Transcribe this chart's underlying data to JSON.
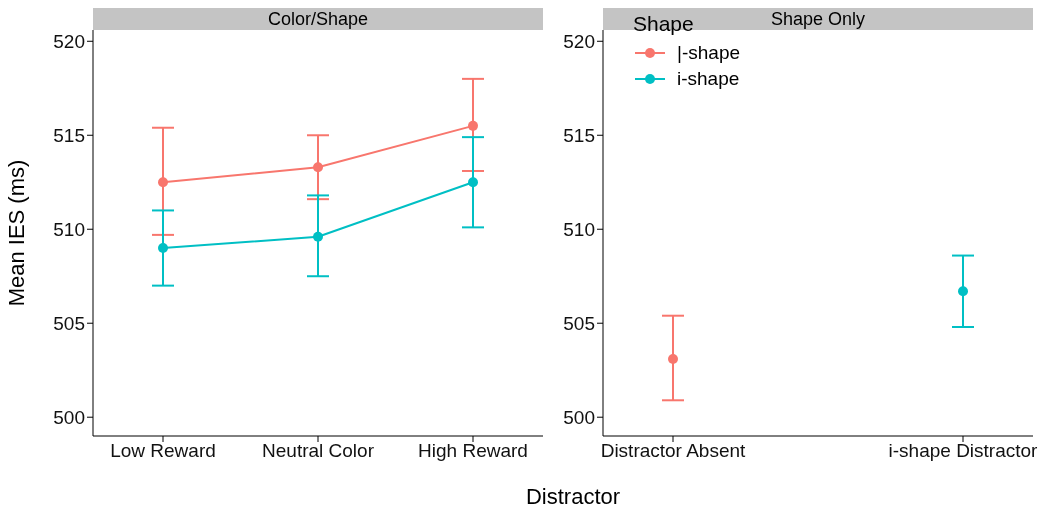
{
  "chart_data": [
    {
      "type": "line",
      "title": "Color/Shape",
      "xlabel": "Distractor",
      "ylabel": "Mean IES (ms)",
      "categories": [
        "Low Reward",
        "Neutral Color",
        "High Reward"
      ],
      "ylim": [
        499,
        520.6
      ],
      "yticks": [
        500,
        505,
        510,
        515,
        520
      ],
      "grid": false,
      "legend": false,
      "marker": "circle",
      "series": [
        {
          "color": "#f8766d",
          "values": [
            512.5,
            513.3,
            515.5
          ],
          "errors": [
            [
              509.7,
              515.4
            ],
            [
              511.6,
              515.0
            ],
            [
              513.1,
              518.0
            ]
          ]
        },
        {
          "color": "#00bfc4",
          "values": [
            509.0,
            509.6,
            512.5
          ],
          "errors": [
            [
              507.0,
              511.0
            ],
            [
              507.5,
              511.8
            ],
            [
              510.1,
              514.9
            ]
          ]
        }
      ]
    },
    {
      "type": "scatter",
      "title": "Shape Only",
      "legend_title": "Shape",
      "categories": [
        "Distractor Absent",
        "i-shape Distractor"
      ],
      "ylim": [
        499,
        520.6
      ],
      "yticks": [
        500,
        505,
        510,
        515,
        520
      ],
      "grid": false,
      "legend": "top left",
      "marker": "circle",
      "series": [
        {
          "name": "|-shape",
          "color": "#f8766d",
          "values": [
            503.1,
            null
          ],
          "errors": [
            [
              500.9,
              505.4
            ],
            null
          ]
        },
        {
          "name": "i-shape",
          "color": "#00bfc4",
          "values": [
            null,
            506.7
          ],
          "errors": [
            null,
            [
              504.8,
              508.6
            ]
          ]
        }
      ]
    }
  ]
}
